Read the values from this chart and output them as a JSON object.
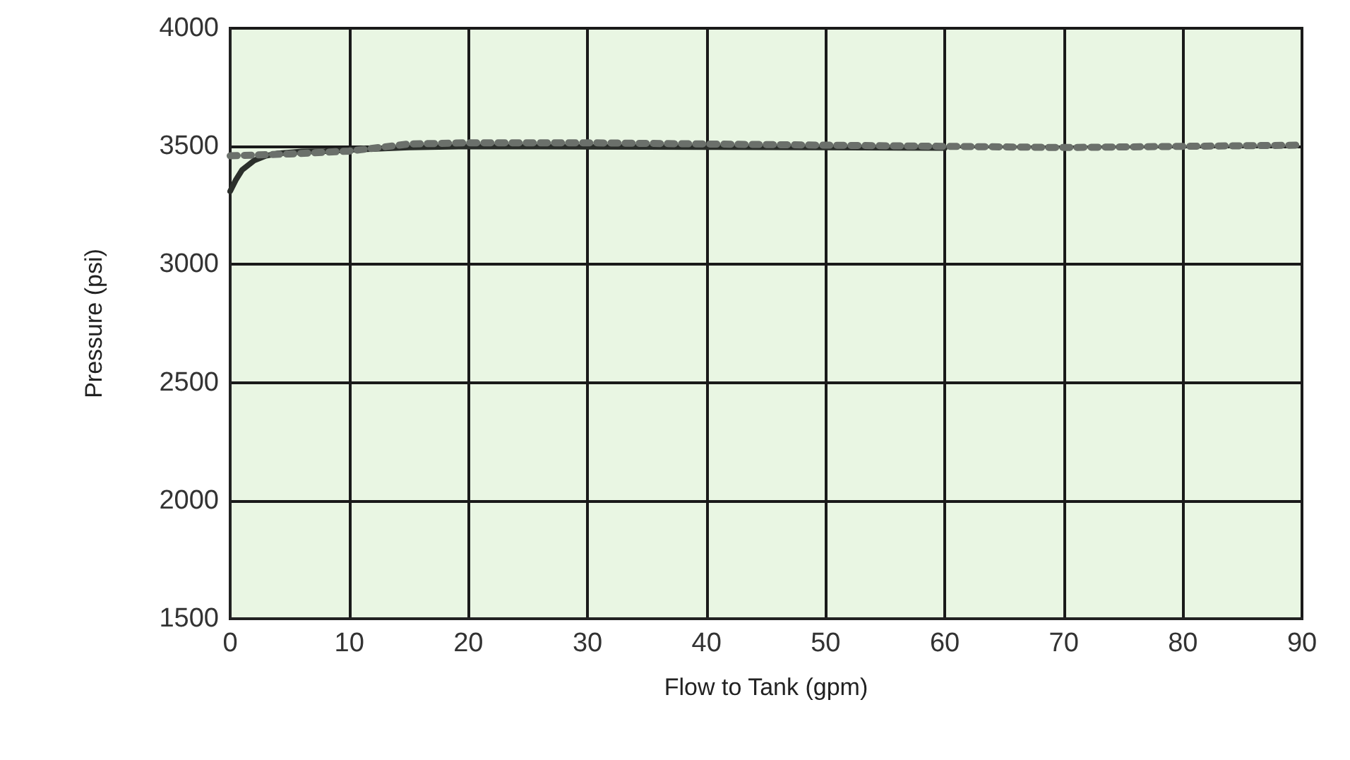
{
  "chart_data": {
    "type": "line",
    "xlabel": "Flow to Tank (gpm)",
    "ylabel": "Pressure (psi)",
    "xlim": [
      0,
      90
    ],
    "xticks": [
      0,
      10,
      20,
      30,
      40,
      50,
      60,
      70,
      80,
      90
    ],
    "ylim": [
      1500,
      4000
    ],
    "yticks": [
      1500,
      2000,
      2500,
      3000,
      3500,
      4000
    ],
    "grid": true,
    "marker": "none",
    "series": [
      {
        "color": "#2b2f2b",
        "line_style": "solid",
        "x": [
          0,
          0.5,
          1,
          2,
          3,
          4,
          6,
          8,
          10,
          15,
          20,
          30,
          40,
          50,
          60
        ],
        "values": [
          3310,
          3360,
          3400,
          3440,
          3460,
          3470,
          3478,
          3480,
          3485,
          3495,
          3500,
          3498,
          3497,
          3495,
          3493
        ]
      },
      {
        "color": "#6b706b",
        "line_style": "dotted",
        "x": [
          0,
          2,
          5,
          10,
          15,
          20,
          30,
          40,
          50,
          60,
          70,
          80,
          90
        ],
        "values": [
          3460,
          3463,
          3468,
          3480,
          3510,
          3515,
          3515,
          3510,
          3505,
          3500,
          3495,
          3500,
          3505
        ]
      }
    ]
  }
}
